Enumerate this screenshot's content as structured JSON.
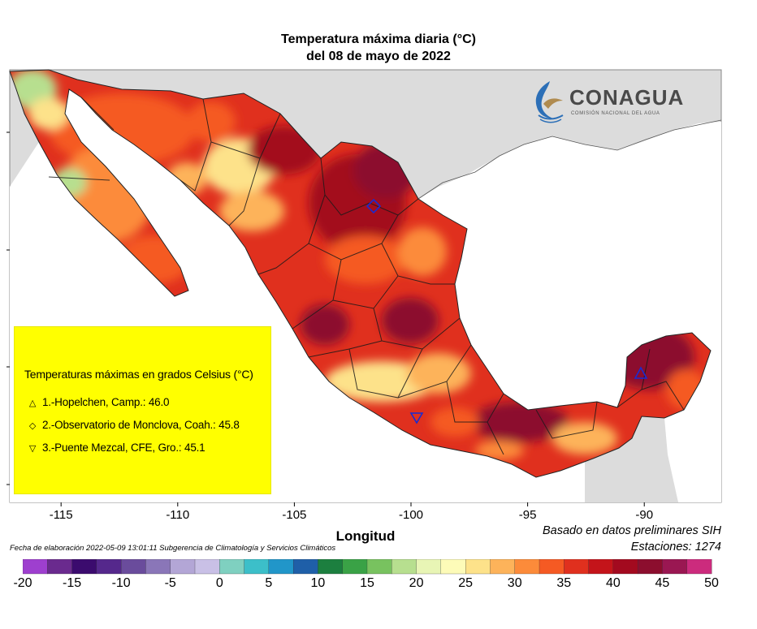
{
  "title_line1": "Temperatura máxima diaria (°C)",
  "title_line2": "del 08 de mayo de 2022",
  "brand": {
    "name": "CONAGUA",
    "subtitle": "COMISIÓN NACIONAL DEL AGUA",
    "colors": {
      "wave_blue": "#2c6fb7",
      "wave_gold": "#b08b4f",
      "text": "#4a4a4a"
    }
  },
  "axis": {
    "xlabel": "Longitud",
    "ticks": [
      "-115",
      "-110",
      "-105",
      "-100",
      "-95",
      "-90"
    ],
    "tick_values": [
      -115,
      -110,
      -105,
      -100,
      -95,
      -90
    ],
    "xlim": [
      -117.2,
      -86.7
    ]
  },
  "legend": {
    "title": "Temperaturas máximas en grados Celsius (°C)",
    "entries": [
      {
        "symbol": "triangle-up-icon",
        "glyph": "△",
        "text": "1.-Hopelchen, Camp.: 46.0",
        "lon": -90,
        "value": 46.0
      },
      {
        "symbol": "diamond-icon",
        "glyph": "◇",
        "text": "2.-Observatorio de Monclova, Coah.: 45.8",
        "lon": -101.4,
        "value": 45.8
      },
      {
        "symbol": "triangle-down-icon",
        "glyph": "▽",
        "text": "3.-Puente Mezcal, CFE, Gro.: 45.1",
        "lon": -99.6,
        "value": 45.1
      }
    ]
  },
  "footer": {
    "fecha": "Fecha de elaboración 2022-05-09 13:01:11 Subgerencia de Climatología y Servicios Climáticos",
    "basado": "Basado en datos preliminares SIH",
    "estaciones": "Estaciones:  1274"
  },
  "colorbar": {
    "ticks": [
      "-20",
      "-15",
      "-10",
      "-5",
      "0",
      "5",
      "10",
      "15",
      "20",
      "25",
      "30",
      "35",
      "40",
      "45",
      "50"
    ],
    "min": -20,
    "max": 50,
    "step": 2.5,
    "colors": [
      "#9e3fcf",
      "#6a2a8e",
      "#3b0b6e",
      "#55288c",
      "#6a4c9c",
      "#8a76b8",
      "#b3a6d6",
      "#c9c0e6",
      "#7fd0c0",
      "#3cbfc9",
      "#2196c9",
      "#1f5fa8",
      "#1c7f3f",
      "#3aa246",
      "#78c25f",
      "#b7df8f",
      "#e8f5b5",
      "#fdfbb8",
      "#fde28a",
      "#fdb35a",
      "#fc8b3a",
      "#f55a23",
      "#e0301e",
      "#c4141a",
      "#a30a1f",
      "#8c0e2e",
      "#9a1752",
      "#cc2b7d"
    ]
  },
  "map": {
    "colors": {
      "land_bg": "#dcdcdc",
      "ocean": "#ffffff",
      "hot": "#c41a1a",
      "hotter": "#8c0e2e",
      "warm": "#f08030",
      "mild": "#fde28a"
    }
  }
}
